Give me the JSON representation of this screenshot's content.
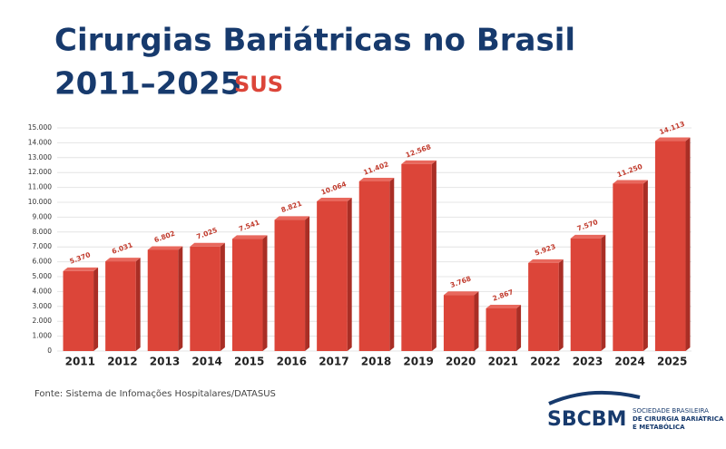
{
  "chart_data": {
    "type": "bar3d",
    "title": "Cirurgias Bariátricas no Brasil",
    "subtitle": "2011–2025",
    "tag": "SUS",
    "source": "Fonte: Sistema de Infomações Hospitalares/DATASUS",
    "categories": [
      "2011",
      "2012",
      "2013",
      "2014",
      "2015",
      "2016",
      "2017",
      "2018",
      "2019",
      "2020",
      "2021",
      "2022",
      "2023",
      "2024",
      "2025"
    ],
    "values": [
      5370,
      6031,
      6802,
      7025,
      7541,
      8821,
      10064,
      11402,
      12568,
      3768,
      2867,
      5923,
      7570,
      11250,
      14113
    ],
    "value_labels": [
      "5.370",
      "6.031",
      "6.802",
      "7.025",
      "7.541",
      "8.821",
      "10.064",
      "11.402",
      "12.568",
      "3.768",
      "2.867",
      "5.923",
      "7.570",
      "11.250",
      "14.113"
    ],
    "color": "#dc4539",
    "ylim": [
      0,
      15000
    ],
    "yticks": [
      0,
      {
        "value": 1000,
        "label": "1.000"
      },
      {
        "value": 2000,
        "label": "2.000"
      },
      {
        "value": 3000,
        "label": "3.000"
      },
      {
        "value": 4000,
        "label": "4.000"
      },
      {
        "value": 5000,
        "label": "5.000"
      },
      {
        "value": 6000,
        "label": "6.000"
      },
      {
        "value": 7000,
        "label": "7.000"
      },
      {
        "value": 8000,
        "label": "8.000"
      },
      {
        "value": 9000,
        "label": "9.000"
      },
      {
        "value": 10000,
        "label": "10.000"
      },
      {
        "value": 11000,
        "label": "11.000"
      },
      {
        "value": 12000,
        "label": "12.000"
      },
      {
        "value": 13000,
        "label": "13.000"
      },
      {
        "value": 14000,
        "label": "14.000"
      },
      {
        "value": 15000,
        "label": "15.000"
      }
    ],
    "grid": true
  },
  "logo": {
    "name": "SBCBM",
    "line1": "SOCIEDADE BRASILEIRA",
    "line2": "DE CIRURGIA BARIÁTRICA",
    "line3": "E METABÓLICA"
  }
}
